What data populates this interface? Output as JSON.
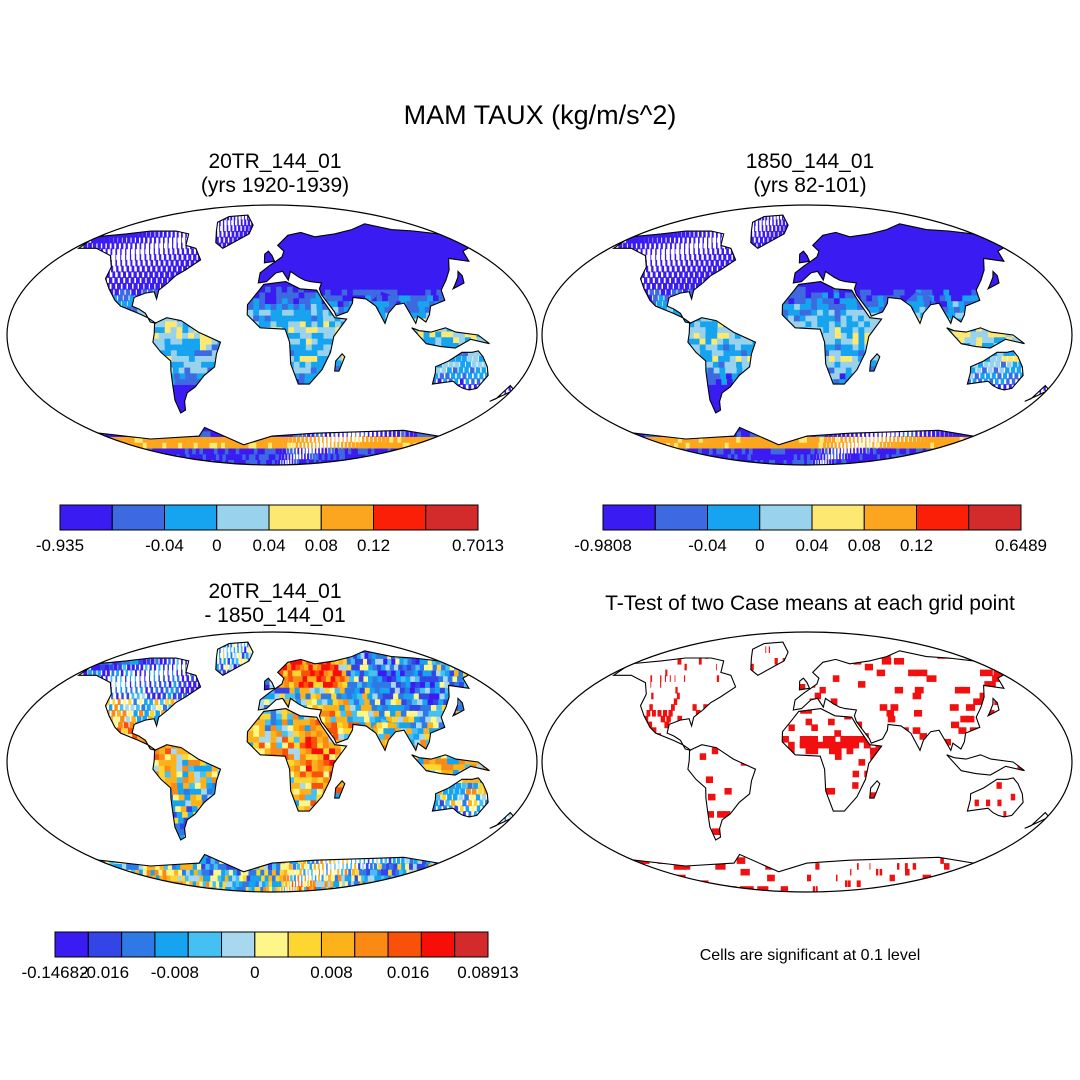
{
  "chart_data": {
    "title": "MAM TAUX (kg/m/s^2)",
    "type": "heatmap",
    "panels": [
      {
        "id": "case1",
        "title_line1": "20TR_144_01",
        "title_line2": "(yrs 1920-1939)",
        "colorbar": {
          "colors": [
            "#3a1cf2",
            "#3d69e1",
            "#16a4f0",
            "#99d2ec",
            "#fde972",
            "#fca61f",
            "#fb1f08",
            "#d32b2b"
          ],
          "labels": [
            "-0.935",
            "-0.04",
            "0",
            "0.04",
            "0.08",
            "0.12",
            "0.7013"
          ],
          "min": -0.935,
          "max": 0.7013,
          "levels": [
            -0.04,
            0,
            0.04,
            0.08,
            0.12
          ]
        }
      },
      {
        "id": "case2",
        "title_line1": "1850_144_01",
        "title_line2": "(yrs 82-101)",
        "colorbar": {
          "colors": [
            "#3a1cf2",
            "#3d69e1",
            "#16a4f0",
            "#99d2ec",
            "#fde972",
            "#fca61f",
            "#fb1f08",
            "#d32b2b"
          ],
          "labels": [
            "-0.9808",
            "-0.04",
            "0",
            "0.04",
            "0.08",
            "0.12",
            "0.6489"
          ],
          "min": -0.9808,
          "max": 0.6489,
          "levels": [
            -0.04,
            0,
            0.04,
            0.08,
            0.12
          ]
        }
      },
      {
        "id": "diff",
        "title_line1": "20TR_144_01",
        "title_line2": "- 1850_144_01",
        "colorbar": {
          "colors": [
            "#3a1cf2",
            "#3345e6",
            "#2f79e6",
            "#16a4f0",
            "#45c0f2",
            "#a7d8ef",
            "#fff68a",
            "#fdd631",
            "#fcb21b",
            "#fb8a14",
            "#f9500a",
            "#f70e08",
            "#d32b2b"
          ],
          "labels": [
            "-0.14682",
            "-0.016",
            "-0.008",
            "0",
            "0.008",
            "0.016",
            "0.08913"
          ],
          "min": -0.14682,
          "max": 0.08913,
          "levels": [
            -0.016,
            -0.012,
            -0.008,
            -0.004,
            -0.002,
            0,
            0.002,
            0.004,
            0.008,
            0.012,
            0.016
          ]
        }
      },
      {
        "id": "ttest",
        "title": "T-Test of two Case means at each grid point",
        "note": "Cells are significant at 0.1 level",
        "significant_color": "#f20f0f"
      }
    ]
  }
}
